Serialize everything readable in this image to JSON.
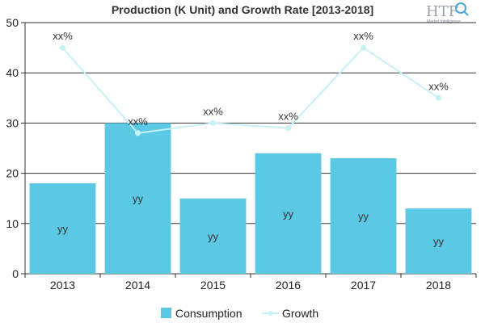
{
  "chart_data": {
    "type": "bar",
    "title": "Production (K Unit) and Growth Rate [2013-2018]",
    "xlabel": "",
    "ylabel": "",
    "categories": [
      "2013",
      "2014",
      "2015",
      "2016",
      "2017",
      "2018"
    ],
    "ylim": [
      0,
      50
    ],
    "yticks": [
      "0",
      "10",
      "20",
      "30",
      "40",
      "50"
    ],
    "grid": true,
    "legend_position": "bottom",
    "series": [
      {
        "name": "Consumption",
        "kind": "bar",
        "color": "#5bc8e4",
        "values": [
          18,
          30,
          15,
          24,
          23,
          13
        ],
        "labels": [
          "yy",
          "yy",
          "yy",
          "yy",
          "yy",
          "yy"
        ]
      },
      {
        "name": "Growth",
        "kind": "line",
        "color": "#c8f1f6",
        "values": [
          45,
          28,
          30,
          29,
          45,
          35
        ],
        "labels": [
          "xx%",
          "xx%",
          "xx%",
          "xx%",
          "xx%",
          "xx%"
        ]
      }
    ]
  },
  "logo": {
    "text": "HTF",
    "subtext": "Market Intelligence",
    "icon": "magnifier-icon"
  }
}
